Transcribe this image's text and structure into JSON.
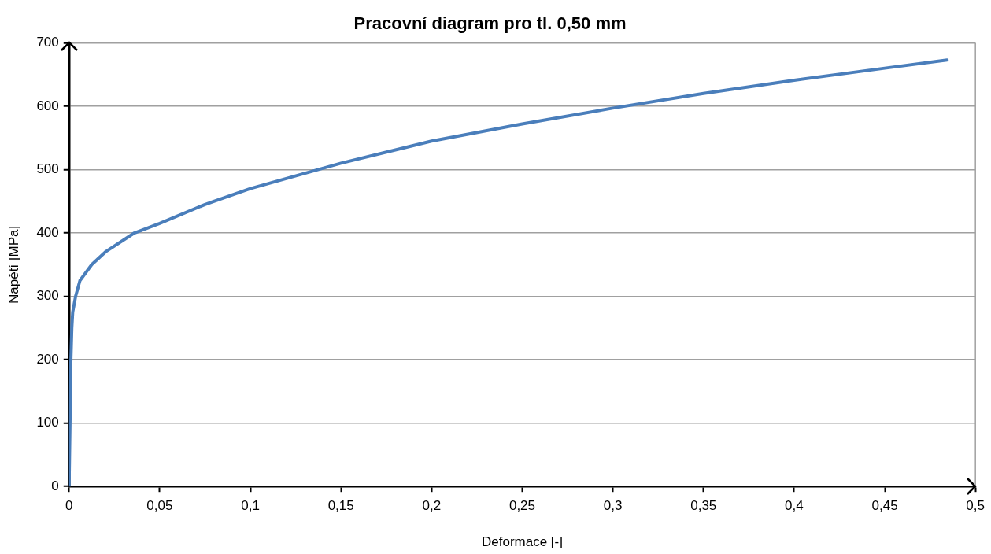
{
  "chart_data": {
    "type": "line",
    "title": "Pracovní diagram pro tl. 0,50 mm",
    "xlabel": "Deformace [-]",
    "ylabel": "Napětí [MPa]",
    "x": [
      0,
      0.0005,
      0.001,
      0.0015,
      0.002,
      0.0036,
      0.006,
      0.0125,
      0.02,
      0.036,
      0.05,
      0.075,
      0.1,
      0.15,
      0.2,
      0.25,
      0.3,
      0.35,
      0.4,
      0.45,
      0.4844
    ],
    "series": [
      {
        "color": "#4a7ebb",
        "values": [
          0,
          100,
          200,
          250,
          275,
          300,
          325,
          350,
          370,
          400,
          415,
          445,
          470,
          510,
          545,
          572,
          597,
          620,
          641,
          660,
          673
        ]
      }
    ],
    "xlim": [
      0,
      0.5
    ],
    "ylim": [
      0,
      700
    ],
    "xticks": [
      0,
      {
        "value": 0.05,
        "label": "0,05"
      },
      {
        "value": 0.1,
        "label": "0,1"
      },
      {
        "value": 0.15,
        "label": "0,15"
      },
      {
        "value": 0.2,
        "label": "0,2"
      },
      {
        "value": 0.25,
        "label": "0,25"
      },
      {
        "value": 0.3,
        "label": "0,3"
      },
      {
        "value": 0.35,
        "label": "0,35"
      },
      {
        "value": 0.4,
        "label": "0,4"
      },
      {
        "value": 0.45,
        "label": "0,45"
      },
      {
        "value": 0.5,
        "label": "0,5"
      }
    ],
    "yticks": [
      0,
      100,
      200,
      300,
      400,
      500,
      600,
      700
    ],
    "grid": "y"
  }
}
